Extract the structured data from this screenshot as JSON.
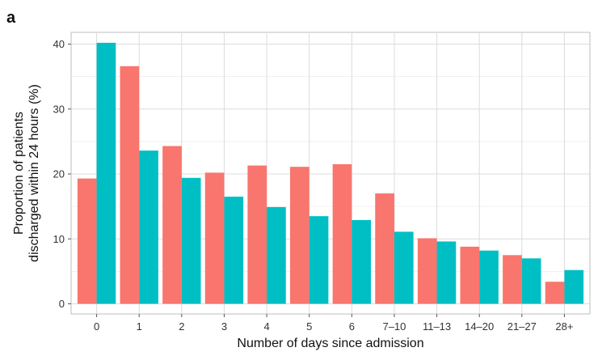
{
  "panel_label": "a",
  "chart_data": {
    "type": "bar",
    "title": "",
    "xlabel": "Number of days since admission",
    "ylabel_lines": [
      "Proportion of patients",
      "discharged within 24 hours (%)"
    ],
    "categories": [
      "0",
      "1",
      "2",
      "3",
      "4",
      "5",
      "6",
      "7–10",
      "11–13",
      "14–20",
      "21–27",
      "28+"
    ],
    "ylim": [
      0,
      42
    ],
    "yticks": [
      0,
      10,
      20,
      30,
      40
    ],
    "grid": true,
    "legend": "none",
    "series": [
      {
        "color": "#F8766D",
        "values": [
          19.3,
          36.6,
          24.3,
          20.2,
          21.3,
          21.1,
          21.5,
          17.0,
          10.1,
          8.8,
          7.5,
          3.4
        ]
      },
      {
        "color": "#00BFC4",
        "values": [
          40.2,
          23.6,
          19.4,
          16.5,
          14.9,
          13.5,
          12.9,
          11.1,
          9.6,
          8.2,
          7.0,
          5.2
        ]
      }
    ]
  }
}
